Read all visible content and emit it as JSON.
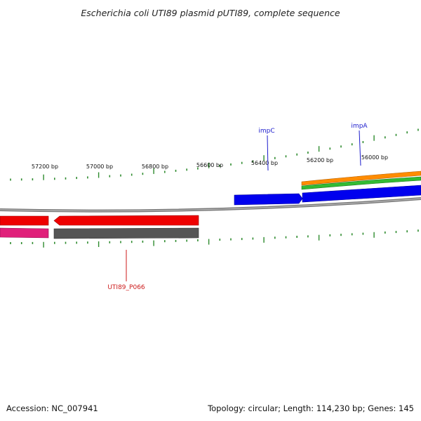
{
  "title": "Escherichia coli UTI89 plasmid pUTI89, complete sequence",
  "footer": {
    "accession": "Accession: NC_007941",
    "topology": "Topology: circular; Length: 114,230 bp; Genes: 145"
  },
  "scale_labels": [
    "57200 bp",
    "57000 bp",
    "56800 bp",
    "56600 bp",
    "56400 bp",
    "56200 bp",
    "56000 bp"
  ],
  "gene_labels": [
    {
      "name": "impC",
      "color": "#1a1acc"
    },
    {
      "name": "impA",
      "color": "#1a1acc"
    },
    {
      "name": "UTI89_P066",
      "color": "#cc1a1a"
    }
  ],
  "colors": {
    "backbone": "#888888",
    "tick": "#2e8b2e",
    "cds_forward": "#0000ee",
    "cds_reverse": "#ee0000",
    "pink_track": "#e0207a",
    "gray_track": "#555555",
    "orange_track": "#ff8c00",
    "green_track": "#33bb33"
  }
}
